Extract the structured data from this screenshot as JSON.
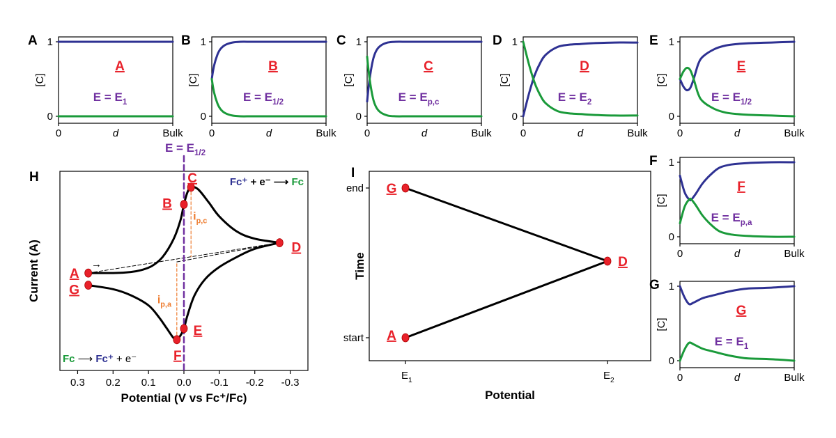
{
  "colors": {
    "ox": "#2e3192",
    "red": "#1a9a3a",
    "point": "#e8212a",
    "half": "#7030a0",
    "peak": "#ee7d31"
  },
  "panels": [
    {
      "id": "A",
      "panel_label": "A",
      "state_label": "A",
      "potential_label": "E = E",
      "potential_sub": "1"
    },
    {
      "id": "B",
      "panel_label": "B",
      "state_label": "B",
      "potential_label": "E = E",
      "potential_sub": "1/2"
    },
    {
      "id": "C",
      "panel_label": "C",
      "state_label": "C",
      "potential_label": "E = E",
      "potential_sub": "p,c"
    },
    {
      "id": "D",
      "panel_label": "D",
      "state_label": "D",
      "potential_label": "E = E",
      "potential_sub": "2"
    },
    {
      "id": "E",
      "panel_label": "E",
      "state_label": "E",
      "potential_label": "E = E",
      "potential_sub": "1/2"
    },
    {
      "id": "F",
      "panel_label": "F",
      "state_label": "F",
      "potential_label": "E = E",
      "potential_sub": "p,a"
    },
    {
      "id": "G",
      "panel_label": "G",
      "state_label": "G",
      "potential_label": "E = E",
      "potential_sub": "1"
    }
  ],
  "small_axes": {
    "ylabel": "[C]",
    "yticks": [
      "0",
      "1"
    ],
    "xtick_left": "0",
    "xlabel": "d",
    "xtick_right": "Bulk"
  },
  "cv": {
    "panel_label": "H",
    "ylabel": "Current (A)",
    "xlabel": "Potential (V vs Fc⁺/Fc)",
    "xticks": [
      "0.3",
      "0.2",
      "0.1",
      "0.0",
      "-0.1",
      "-0.2",
      "-0.3"
    ],
    "half_label": "E = E",
    "half_sub": "1/2",
    "reduction_eq": {
      "left": "Fc⁺",
      "mid": " + e⁻ ⟶ ",
      "right": "Fc"
    },
    "oxidation_eq": {
      "left": "Fc",
      "mid": " ⟶ ",
      "right": "Fc⁺",
      "tail": " + e⁻"
    },
    "ipc_label": "i",
    "ipc_sub": "p,c",
    "ipa_label": "i",
    "ipa_sub": "p,a",
    "arrow": "→",
    "points": [
      "A",
      "B",
      "C",
      "D",
      "E",
      "F",
      "G"
    ]
  },
  "waveform": {
    "panel_label": "I",
    "ylabel": "Time",
    "xlabel": "Potential",
    "yticks": [
      "end",
      "start"
    ],
    "xticks": [
      {
        "main": "E",
        "sub": "1"
      },
      {
        "main": "E",
        "sub": "2"
      }
    ],
    "points": [
      "A",
      "D",
      "G"
    ]
  },
  "chart_data": [
    {
      "type": "line",
      "title": "A",
      "xlabel": "d",
      "ylabel": "[C]",
      "ylim": [
        0,
        1
      ],
      "x": [
        0,
        0.1,
        0.2,
        0.3,
        0.4,
        0.5,
        0.6,
        0.7,
        0.8,
        0.9,
        1.0
      ],
      "series": [
        {
          "color": "#2e3192",
          "values": [
            1,
            1,
            1,
            1,
            1,
            1,
            1,
            1,
            1,
            1,
            1
          ]
        },
        {
          "color": "#1a9a3a",
          "values": [
            0,
            0,
            0,
            0,
            0,
            0,
            0,
            0,
            0,
            0,
            0
          ]
        }
      ]
    },
    {
      "type": "line",
      "title": "B",
      "xlabel": "d",
      "ylabel": "[C]",
      "ylim": [
        0,
        1
      ],
      "x": [
        0,
        0.02,
        0.05,
        0.08,
        0.12,
        0.18,
        0.25,
        0.35,
        0.5,
        0.7,
        1.0
      ],
      "series": [
        {
          "color": "#2e3192",
          "values": [
            0.5,
            0.68,
            0.83,
            0.91,
            0.96,
            0.99,
            1,
            1,
            1,
            1,
            1
          ]
        },
        {
          "color": "#1a9a3a",
          "values": [
            0.5,
            0.32,
            0.17,
            0.09,
            0.04,
            0.01,
            0,
            0,
            0,
            0,
            0
          ]
        }
      ]
    },
    {
      "type": "line",
      "title": "C",
      "xlabel": "d",
      "ylabel": "[C]",
      "ylim": [
        0,
        1
      ],
      "x": [
        0,
        0.02,
        0.05,
        0.08,
        0.12,
        0.18,
        0.25,
        0.35,
        0.5,
        0.7,
        1.0
      ],
      "series": [
        {
          "color": "#2e3192",
          "values": [
            0.2,
            0.48,
            0.75,
            0.88,
            0.95,
            0.99,
            1,
            1,
            1,
            1,
            1
          ]
        },
        {
          "color": "#1a9a3a",
          "values": [
            0.8,
            0.52,
            0.25,
            0.12,
            0.05,
            0.01,
            0,
            0,
            0,
            0,
            0
          ]
        }
      ]
    },
    {
      "type": "line",
      "title": "D",
      "xlabel": "d",
      "ylabel": "[C]",
      "ylim": [
        0,
        1
      ],
      "x": [
        0,
        0.05,
        0.1,
        0.15,
        0.2,
        0.3,
        0.4,
        0.5,
        0.6,
        0.8,
        1.0
      ],
      "series": [
        {
          "color": "#2e3192",
          "values": [
            0,
            0.3,
            0.55,
            0.72,
            0.83,
            0.93,
            0.96,
            0.97,
            0.98,
            0.99,
            0.99
          ]
        },
        {
          "color": "#1a9a3a",
          "values": [
            1,
            0.7,
            0.45,
            0.28,
            0.17,
            0.07,
            0.04,
            0.03,
            0.02,
            0.01,
            0.01
          ]
        }
      ]
    },
    {
      "type": "line",
      "title": "E",
      "xlabel": "d",
      "ylabel": "[C]",
      "ylim": [
        0,
        1
      ],
      "x": [
        0,
        0.03,
        0.06,
        0.09,
        0.12,
        0.16,
        0.2,
        0.3,
        0.4,
        0.5,
        0.6,
        0.8,
        1.0
      ],
      "series": [
        {
          "color": "#2e3192",
          "values": [
            0.5,
            0.4,
            0.35,
            0.38,
            0.5,
            0.7,
            0.8,
            0.9,
            0.95,
            0.97,
            0.98,
            0.99,
            1
          ]
        },
        {
          "color": "#1a9a3a",
          "values": [
            0.5,
            0.6,
            0.65,
            0.62,
            0.5,
            0.3,
            0.2,
            0.1,
            0.05,
            0.03,
            0.02,
            0.01,
            0
          ]
        }
      ]
    },
    {
      "type": "line",
      "title": "F",
      "xlabel": "d",
      "ylabel": "[C]",
      "ylim": [
        0,
        1
      ],
      "x": [
        0,
        0.04,
        0.08,
        0.1,
        0.14,
        0.2,
        0.28,
        0.35,
        0.45,
        0.6,
        0.8,
        1.0
      ],
      "series": [
        {
          "color": "#2e3192",
          "values": [
            0.82,
            0.6,
            0.5,
            0.5,
            0.58,
            0.72,
            0.85,
            0.93,
            0.97,
            0.99,
            1,
            1
          ]
        },
        {
          "color": "#1a9a3a",
          "values": [
            0.18,
            0.4,
            0.5,
            0.5,
            0.42,
            0.28,
            0.15,
            0.07,
            0.03,
            0.01,
            0,
            0
          ]
        }
      ]
    },
    {
      "type": "line",
      "title": "G",
      "xlabel": "d",
      "ylabel": "[C]",
      "ylim": [
        0,
        1
      ],
      "x": [
        0,
        0.04,
        0.08,
        0.12,
        0.2,
        0.3,
        0.4,
        0.5,
        0.6,
        0.8,
        1.0
      ],
      "series": [
        {
          "color": "#2e3192",
          "values": [
            1,
            0.85,
            0.76,
            0.78,
            0.84,
            0.88,
            0.92,
            0.95,
            0.97,
            0.98,
            1
          ]
        },
        {
          "color": "#1a9a3a",
          "values": [
            0,
            0.15,
            0.24,
            0.22,
            0.16,
            0.12,
            0.08,
            0.05,
            0.03,
            0.02,
            0
          ]
        }
      ]
    },
    {
      "type": "line",
      "title": "H",
      "xlabel": "Potential (V vs Fc⁺/Fc)",
      "ylabel": "Current (A)",
      "xlim": [
        0.35,
        -0.35
      ],
      "ylim": [
        -1,
        1
      ],
      "forward": {
        "x": [
          0.27,
          0.2,
          0.15,
          0.12,
          0.09,
          0.06,
          0.03,
          0.01,
          0.0,
          -0.01,
          -0.02,
          -0.04,
          -0.07,
          -0.1,
          -0.15,
          -0.2,
          -0.27
        ],
        "y": [
          0.02,
          0.02,
          0.03,
          0.05,
          0.09,
          0.18,
          0.35,
          0.54,
          0.7,
          0.82,
          0.87,
          0.85,
          0.72,
          0.58,
          0.43,
          0.36,
          0.32
        ]
      },
      "reverse": {
        "x": [
          -0.27,
          -0.2,
          -0.15,
          -0.1,
          -0.06,
          -0.03,
          -0.01,
          0.0,
          0.01,
          0.02,
          0.03,
          0.05,
          0.07,
          0.1,
          0.15,
          0.2,
          0.27
        ],
        "y": [
          0.32,
          0.26,
          0.18,
          0.08,
          -0.04,
          -0.2,
          -0.4,
          -0.53,
          -0.6,
          -0.64,
          -0.62,
          -0.52,
          -0.42,
          -0.3,
          -0.2,
          -0.14,
          -0.1
        ]
      },
      "baselines": {
        "cathodic": {
          "x": [
            0.27,
            -0.27
          ],
          "y": [
            0.02,
            0.32
          ]
        },
        "anodic": {
          "x": [
            0.02,
            -0.27
          ],
          "y": [
            0.13,
            0.32
          ]
        }
      },
      "points": [
        {
          "label": "A",
          "x": 0.27,
          "y": 0.02
        },
        {
          "label": "B",
          "x": 0.0,
          "y": 0.7
        },
        {
          "label": "C",
          "x": -0.02,
          "y": 0.87
        },
        {
          "label": "D",
          "x": -0.27,
          "y": 0.32
        },
        {
          "label": "E",
          "x": 0.0,
          "y": -0.53
        },
        {
          "label": "F",
          "x": 0.02,
          "y": -0.64
        },
        {
          "label": "G",
          "x": 0.27,
          "y": -0.1
        }
      ],
      "e_half": 0.0,
      "ipc_x": -0.02,
      "ipa_x": 0.02
    },
    {
      "type": "line",
      "title": "I",
      "xlabel": "Potential",
      "ylabel": "Time",
      "x": [
        "E1",
        "E2",
        "E1"
      ],
      "y": [
        "start",
        "mid",
        "end"
      ],
      "points": [
        {
          "label": "A",
          "x": "E1",
          "y": "start"
        },
        {
          "label": "D",
          "x": "E2",
          "y": "mid"
        },
        {
          "label": "G",
          "x": "E1",
          "y": "end"
        }
      ]
    }
  ]
}
